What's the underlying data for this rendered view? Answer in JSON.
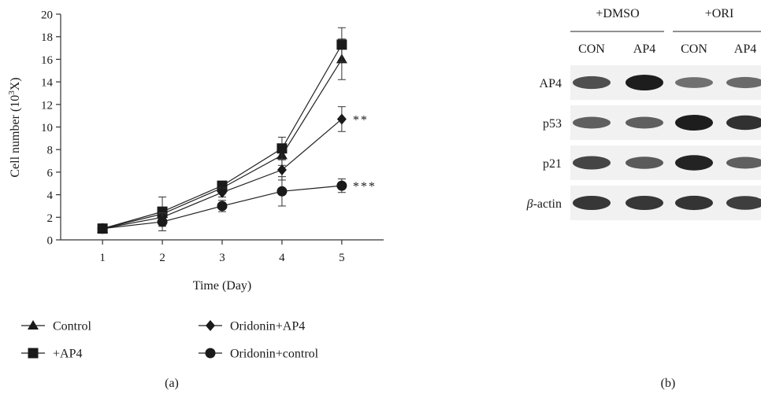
{
  "panels": {
    "a_label": "(a)",
    "b_label": "(b)"
  },
  "chart_data": {
    "type": "line",
    "xlabel": "Time (Day)",
    "ylabel_main": "Cell number (10",
    "ylabel_sup": "3",
    "ylabel_tail": "X)",
    "x": [
      1,
      2,
      3,
      4,
      5
    ],
    "xlim": [
      0.3,
      5.7
    ],
    "ylim": [
      0,
      20
    ],
    "xticks": [
      1,
      2,
      3,
      4,
      5
    ],
    "yticks": [
      0,
      2,
      4,
      6,
      8,
      10,
      12,
      14,
      16,
      18,
      20
    ],
    "series": [
      {
        "name": "Control",
        "marker": "triangle",
        "values": [
          1.0,
          2.3,
          4.6,
          7.5,
          16.0
        ],
        "err": [
          0,
          0.3,
          0.4,
          0.9,
          1.8
        ]
      },
      {
        "name": "+AP4",
        "marker": "square",
        "values": [
          1.0,
          2.5,
          4.8,
          8.1,
          17.3
        ],
        "err": [
          0,
          1.3,
          0.3,
          1.0,
          1.5
        ]
      },
      {
        "name": "Oridonin+AP4",
        "marker": "diamond",
        "values": [
          1.0,
          2.0,
          4.2,
          6.2,
          10.7
        ],
        "err": [
          0,
          0.3,
          0.4,
          0.9,
          1.1
        ]
      },
      {
        "name": "Oridonin+control",
        "marker": "circle",
        "values": [
          1.0,
          1.6,
          3.0,
          4.3,
          4.8
        ],
        "err": [
          0,
          0.8,
          0.5,
          1.3,
          0.6
        ]
      }
    ],
    "annotations": [
      {
        "series": "Oridonin+AP4",
        "text": "**"
      },
      {
        "series": "Oridonin+control",
        "text": "***"
      }
    ]
  },
  "blot": {
    "groups": [
      "+DMSO",
      "+ORI"
    ],
    "lanes": [
      "CON",
      "AP4",
      "CON",
      "AP4"
    ],
    "proteins": [
      {
        "symbol": "",
        "name": "AP4",
        "intensity": [
          0.62,
          1.0,
          0.38,
          0.42
        ]
      },
      {
        "symbol": "",
        "name": "p53",
        "intensity": [
          0.5,
          0.5,
          1.0,
          0.85
        ]
      },
      {
        "symbol": "",
        "name": "p21",
        "intensity": [
          0.7,
          0.55,
          0.95,
          0.5
        ]
      },
      {
        "symbol": "β",
        "name": "-actin",
        "intensity": [
          0.8,
          0.8,
          0.82,
          0.75
        ]
      }
    ]
  }
}
